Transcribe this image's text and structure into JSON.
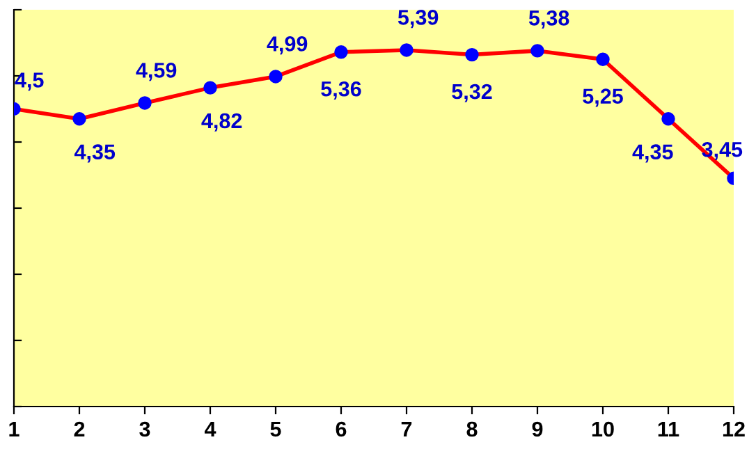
{
  "chart_data": {
    "type": "line",
    "categories": [
      "1",
      "2",
      "3",
      "4",
      "5",
      "6",
      "7",
      "8",
      "9",
      "10",
      "11",
      "12"
    ],
    "series": [
      {
        "color": "#ff0000",
        "values": [
          4.5,
          4.35,
          4.59,
          4.82,
          4.99,
          5.36,
          5.39,
          5.32,
          5.38,
          5.25,
          4.35,
          3.45
        ],
        "value_labels": [
          "4,5",
          "4,35",
          "4,59",
          "4,82",
          "4,99",
          "5,36",
          "5,39",
          "5,32",
          "5,38",
          "5,25",
          "4,35",
          "3,45"
        ]
      }
    ],
    "marker": "circle",
    "ylim": [
      0,
      6
    ],
    "yticks": [
      {
        "value": 0,
        "label": null
      },
      {
        "value": 1,
        "label": null
      },
      {
        "value": 2,
        "label": null
      },
      {
        "value": 3,
        "label": null
      },
      {
        "value": 4,
        "label": null
      },
      {
        "value": 5,
        "label": null
      },
      {
        "value": 6,
        "label": null
      }
    ],
    "grid": false,
    "legend": false
  }
}
